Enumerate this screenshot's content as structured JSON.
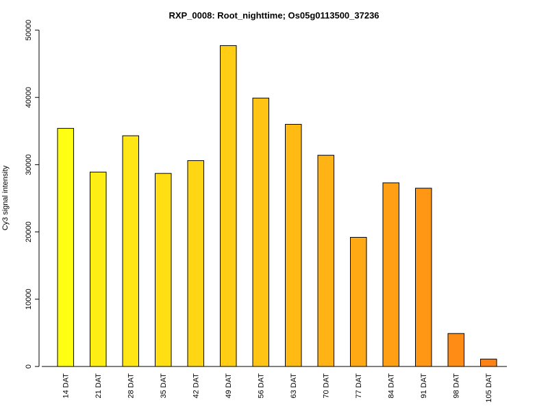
{
  "chart_data": {
    "type": "bar",
    "title": "RXP_0008: Root_nighttime; Os05g0113500_37236",
    "xlabel": "",
    "ylabel": "Cy3 signal intensity",
    "ylim": [
      0,
      50000
    ],
    "yticks": [
      0,
      10000,
      20000,
      30000,
      40000,
      50000
    ],
    "grid": false,
    "legend": "none",
    "categories": [
      "14 DAT",
      "21 DAT",
      "28 DAT",
      "35 DAT",
      "42 DAT",
      "49 DAT",
      "56 DAT",
      "63 DAT",
      "70 DAT",
      "77 DAT",
      "84 DAT",
      "91 DAT",
      "98 DAT",
      "105 DAT"
    ],
    "values": [
      35400,
      28900,
      34300,
      28700,
      30600,
      47700,
      39900,
      36000,
      31400,
      19200,
      27300,
      26500,
      4900,
      1100
    ],
    "colors": [
      "#FFFF14",
      "#FFEE14",
      "#FFE614",
      "#FFDE14",
      "#FFD614",
      "#FFCE14",
      "#FFC414",
      "#FFBB14",
      "#FFB314",
      "#FFAA14",
      "#FFA014",
      "#FF9614",
      "#FF8C14",
      "#FF8214"
    ]
  }
}
